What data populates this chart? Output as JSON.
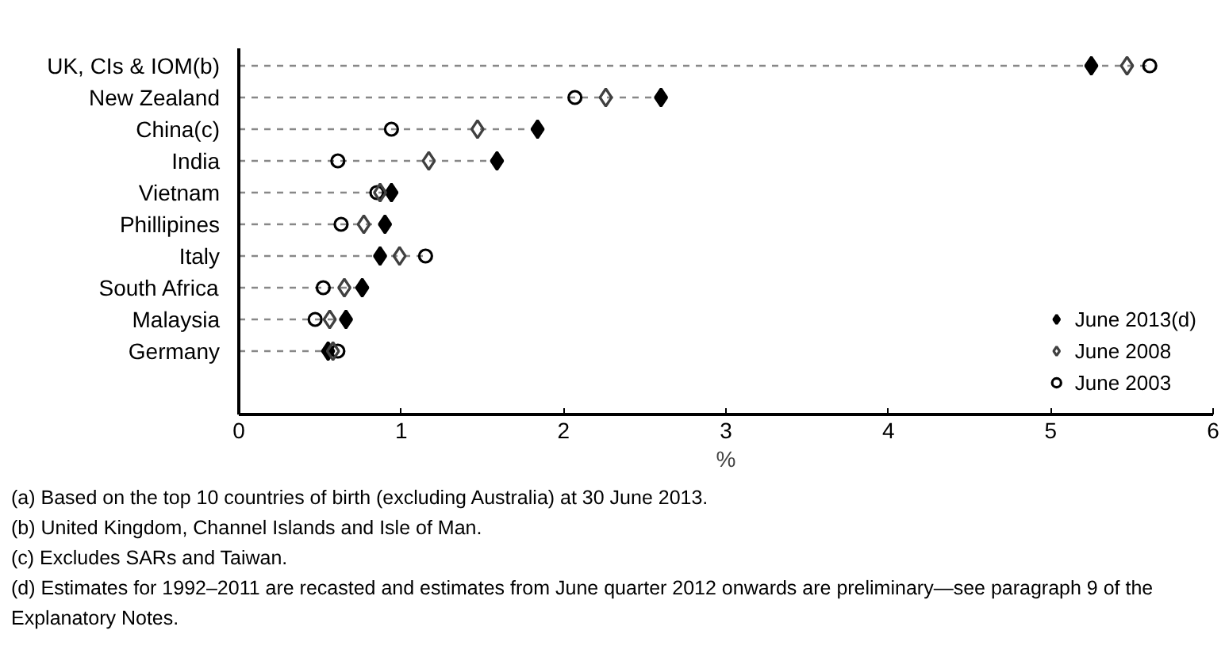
{
  "chart_data": {
    "type": "scatter",
    "orientation": "horizontal",
    "xlabel": "%",
    "categories": [
      "UK, CIs & IOM(b)",
      "New Zealand",
      "China(c)",
      "India",
      "Vietnam",
      "Phillipines",
      "Italy",
      "South Africa",
      "Malaysia",
      "Germany"
    ],
    "series": [
      {
        "name": "June 2013(d)",
        "color": "#000000",
        "marker": "diamond",
        "values": [
          5.25,
          2.6,
          1.84,
          1.59,
          0.94,
          0.9,
          0.87,
          0.76,
          0.66,
          0.55
        ]
      },
      {
        "name": "June 2008",
        "color": "#404040",
        "marker": "diamond",
        "values": [
          5.47,
          2.26,
          1.47,
          1.17,
          0.87,
          0.77,
          0.99,
          0.65,
          0.56,
          0.58
        ]
      },
      {
        "name": "June 2003",
        "color": "#000000",
        "marker": "circle",
        "values": [
          5.61,
          2.07,
          0.94,
          0.61,
          0.85,
          0.63,
          1.15,
          0.52,
          0.47,
          0.61
        ]
      }
    ],
    "xlim": [
      0,
      6
    ],
    "xticks": [
      0,
      1,
      2,
      3,
      4,
      5,
      6
    ],
    "grid": false,
    "legend": "bottom right",
    "annotations": [
      "(a) Based on the top 10 countries of birth (excluding Australia) at 30 June 2013.",
      "(b) United Kingdom, Channel Islands and Isle of Man.",
      "(c) Excludes SARs and Taiwan.",
      "(d) Estimates for 1992–2011 are recasted and estimates from June quarter 2012 onwards are preliminary—see paragraph 9 of the Explanatory Notes."
    ]
  }
}
